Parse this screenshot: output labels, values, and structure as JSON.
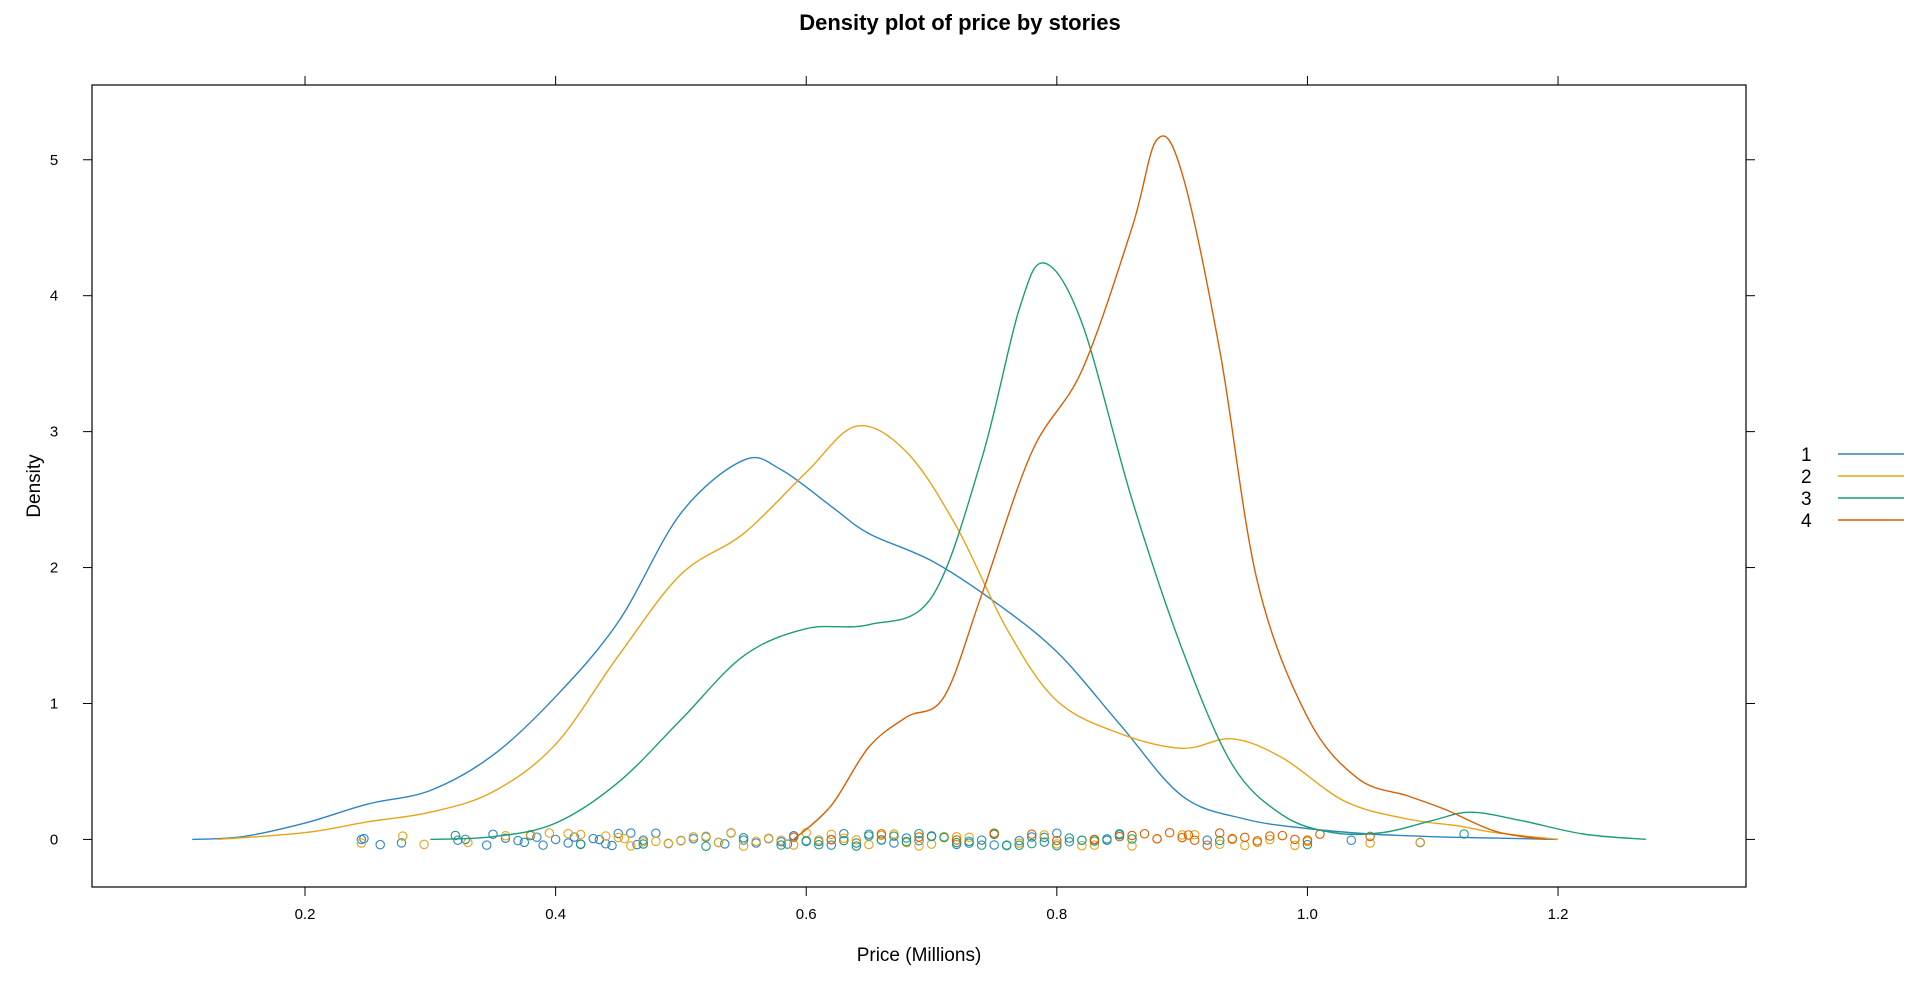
{
  "chart_data": {
    "type": "line",
    "title": "Density plot of price by stories",
    "xlabel": "Price (Millions)",
    "ylabel": "Density",
    "xlim": [
      0.03,
      1.35
    ],
    "ylim": [
      -0.35,
      5.55
    ],
    "x_ticks": [
      0.2,
      0.4,
      0.6,
      0.8,
      1.0,
      1.2
    ],
    "x_tick_labels": [
      "0.2",
      "0.4",
      "0.6",
      "0.8",
      "1.0",
      "1.2"
    ],
    "y_ticks": [
      0,
      1,
      2,
      3,
      4,
      5
    ],
    "y_tick_labels": [
      "0",
      "1",
      "2",
      "3",
      "4",
      "5"
    ],
    "grid": false,
    "legend_position": "right",
    "series": [
      {
        "name": "1",
        "color": "#2E86C1",
        "points": [
          [
            0.11,
            0
          ],
          [
            0.15,
            0.02
          ],
          [
            0.2,
            0.12
          ],
          [
            0.25,
            0.26
          ],
          [
            0.3,
            0.36
          ],
          [
            0.35,
            0.62
          ],
          [
            0.4,
            1.05
          ],
          [
            0.45,
            1.6
          ],
          [
            0.5,
            2.4
          ],
          [
            0.55,
            2.79
          ],
          [
            0.58,
            2.72
          ],
          [
            0.62,
            2.45
          ],
          [
            0.65,
            2.25
          ],
          [
            0.7,
            2.05
          ],
          [
            0.75,
            1.75
          ],
          [
            0.8,
            1.38
          ],
          [
            0.85,
            0.85
          ],
          [
            0.9,
            0.32
          ],
          [
            0.95,
            0.15
          ],
          [
            1.0,
            0.08
          ],
          [
            1.05,
            0.04
          ],
          [
            1.1,
            0.02
          ],
          [
            1.15,
            0.01
          ],
          [
            1.2,
            0
          ]
        ]
      },
      {
        "name": "2",
        "color": "#E8A317",
        "points": [
          [
            0.13,
            0
          ],
          [
            0.2,
            0.05
          ],
          [
            0.25,
            0.13
          ],
          [
            0.3,
            0.2
          ],
          [
            0.35,
            0.35
          ],
          [
            0.4,
            0.7
          ],
          [
            0.45,
            1.35
          ],
          [
            0.5,
            1.95
          ],
          [
            0.55,
            2.25
          ],
          [
            0.6,
            2.7
          ],
          [
            0.64,
            3.04
          ],
          [
            0.68,
            2.85
          ],
          [
            0.72,
            2.3
          ],
          [
            0.76,
            1.55
          ],
          [
            0.8,
            1.02
          ],
          [
            0.85,
            0.78
          ],
          [
            0.9,
            0.67
          ],
          [
            0.94,
            0.74
          ],
          [
            0.98,
            0.6
          ],
          [
            1.03,
            0.28
          ],
          [
            1.08,
            0.15
          ],
          [
            1.12,
            0.1
          ],
          [
            1.15,
            0.05
          ],
          [
            1.2,
            0
          ]
        ]
      },
      {
        "name": "3",
        "color": "#1A9E77",
        "points": [
          [
            0.3,
            0
          ],
          [
            0.35,
            0.02
          ],
          [
            0.4,
            0.12
          ],
          [
            0.45,
            0.42
          ],
          [
            0.5,
            0.88
          ],
          [
            0.55,
            1.35
          ],
          [
            0.6,
            1.55
          ],
          [
            0.65,
            1.58
          ],
          [
            0.7,
            1.78
          ],
          [
            0.74,
            2.8
          ],
          [
            0.77,
            3.9
          ],
          [
            0.79,
            4.24
          ],
          [
            0.82,
            3.8
          ],
          [
            0.86,
            2.5
          ],
          [
            0.9,
            1.4
          ],
          [
            0.94,
            0.55
          ],
          [
            0.98,
            0.18
          ],
          [
            1.02,
            0.05
          ],
          [
            1.06,
            0.05
          ],
          [
            1.1,
            0.14
          ],
          [
            1.13,
            0.2
          ],
          [
            1.17,
            0.14
          ],
          [
            1.22,
            0.04
          ],
          [
            1.27,
            0
          ]
        ]
      },
      {
        "name": "4",
        "color": "#D95F02",
        "points": [
          [
            0.59,
            0
          ],
          [
            0.62,
            0.25
          ],
          [
            0.65,
            0.68
          ],
          [
            0.68,
            0.9
          ],
          [
            0.71,
            1.05
          ],
          [
            0.74,
            1.8
          ],
          [
            0.78,
            2.85
          ],
          [
            0.82,
            3.45
          ],
          [
            0.86,
            4.5
          ],
          [
            0.88,
            5.15
          ],
          [
            0.9,
            4.9
          ],
          [
            0.93,
            3.6
          ],
          [
            0.96,
            1.9
          ],
          [
            1.0,
            0.9
          ],
          [
            1.04,
            0.45
          ],
          [
            1.08,
            0.32
          ],
          [
            1.11,
            0.22
          ],
          [
            1.15,
            0.06
          ],
          [
            1.19,
            0
          ]
        ]
      }
    ],
    "rug": {
      "1": [
        0.245,
        0.247,
        0.26,
        0.277,
        0.322,
        0.328,
        0.345,
        0.35,
        0.36,
        0.37,
        0.375,
        0.38,
        0.385,
        0.39,
        0.4,
        0.41,
        0.415,
        0.42,
        0.43,
        0.435,
        0.44,
        0.445,
        0.45,
        0.46,
        0.465,
        0.47,
        0.48,
        0.49,
        0.5,
        0.51,
        0.52,
        0.53,
        0.535,
        0.54,
        0.55,
        0.56,
        0.57,
        0.58,
        0.585,
        0.59,
        0.6,
        0.61,
        0.62,
        0.63,
        0.64,
        0.65,
        0.66,
        0.67,
        0.68,
        0.69,
        0.7,
        0.71,
        0.72,
        0.73,
        0.74,
        0.75,
        0.76,
        0.77,
        0.78,
        0.79,
        0.8,
        0.81,
        0.82,
        0.83,
        0.84,
        0.85,
        0.92,
        1.035,
        1.09
      ],
      "2": [
        0.245,
        0.278,
        0.295,
        0.33,
        0.36,
        0.38,
        0.395,
        0.41,
        0.42,
        0.44,
        0.45,
        0.455,
        0.46,
        0.47,
        0.48,
        0.49,
        0.5,
        0.51,
        0.52,
        0.53,
        0.54,
        0.55,
        0.56,
        0.57,
        0.58,
        0.59,
        0.6,
        0.61,
        0.62,
        0.63,
        0.64,
        0.65,
        0.66,
        0.67,
        0.68,
        0.69,
        0.7,
        0.71,
        0.72,
        0.73,
        0.75,
        0.77,
        0.79,
        0.8,
        0.82,
        0.83,
        0.86,
        0.88,
        0.9,
        0.91,
        0.93,
        0.94,
        0.95,
        0.96,
        0.97,
        0.99,
        1.0,
        1.05,
        1.09
      ],
      "3": [
        0.32,
        0.42,
        0.47,
        0.52,
        0.55,
        0.58,
        0.6,
        0.61,
        0.62,
        0.63,
        0.64,
        0.65,
        0.66,
        0.67,
        0.68,
        0.69,
        0.7,
        0.71,
        0.72,
        0.73,
        0.74,
        0.75,
        0.76,
        0.77,
        0.78,
        0.79,
        0.8,
        0.81,
        0.82,
        0.83,
        0.84,
        0.85,
        0.86,
        0.93,
        1.0,
        1.125
      ],
      "4": [
        0.59,
        0.62,
        0.66,
        0.69,
        0.72,
        0.75,
        0.78,
        0.8,
        0.83,
        0.85,
        0.86,
        0.87,
        0.88,
        0.89,
        0.9,
        0.905,
        0.91,
        0.92,
        0.93,
        0.94,
        0.95,
        0.96,
        0.97,
        0.98,
        0.99,
        1.0,
        1.01,
        1.05
      ]
    }
  }
}
